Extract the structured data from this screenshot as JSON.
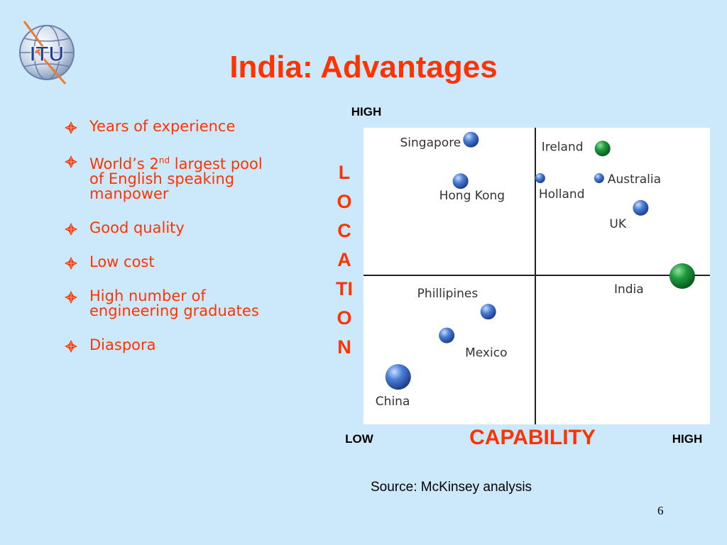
{
  "slide": {
    "logo_text": "ITU",
    "title": "India: Advantages",
    "bullets": [
      "Years of experience",
      "World’s 2",
      "Good quality",
      "Low cost",
      "High number of engineering graduates",
      "Diaspora"
    ],
    "bullet_2_sup": "nd",
    "bullet_2_rest": " largest pool of English speaking manpower",
    "source": "Source: McKinsey analysis",
    "page_number": "6",
    "accent_color": "#ff3300",
    "background_color": "#cce9fb"
  },
  "chart_data": {
    "type": "scatter",
    "xlabel": "CAPABILITY",
    "ylabel_letters": [
      "L",
      "O",
      "C",
      "A",
      "TI",
      "O",
      "N"
    ],
    "y_high_label": "HIGH",
    "x_low_label": "LOW",
    "x_high_label": "HIGH",
    "xlim": [
      0,
      10
    ],
    "ylim": [
      0,
      10
    ],
    "quadrant_dividers": {
      "x": 5,
      "y": 5
    },
    "points": [
      {
        "name": "Singapore",
        "x": 3.1,
        "y": 9.6,
        "size": "medium",
        "color": "#3a6fc4"
      },
      {
        "name": "Hong Kong",
        "x": 2.8,
        "y": 8.2,
        "size": "medium",
        "color": "#3a6fc4"
      },
      {
        "name": "Ireland",
        "x": 6.9,
        "y": 9.3,
        "size": "medium",
        "color": "#1e8b3a"
      },
      {
        "name": "Holland",
        "x": 5.1,
        "y": 8.3,
        "size": "small",
        "color": "#3a6fc4"
      },
      {
        "name": "Australia",
        "x": 6.8,
        "y": 8.3,
        "size": "small",
        "color": "#3a6fc4"
      },
      {
        "name": "UK",
        "x": 8.0,
        "y": 7.3,
        "size": "medium",
        "color": "#3a6fc4"
      },
      {
        "name": "India",
        "x": 9.2,
        "y": 5.0,
        "size": "large",
        "color": "#1e8b3a"
      },
      {
        "name": "Phillipines",
        "x": 3.6,
        "y": 3.8,
        "size": "medium",
        "color": "#3a6fc4"
      },
      {
        "name": "Mexico",
        "x": 2.4,
        "y": 3.0,
        "size": "medium",
        "color": "#3a6fc4"
      },
      {
        "name": "China",
        "x": 1.0,
        "y": 1.6,
        "size": "large",
        "color": "#3a6fc4"
      }
    ]
  }
}
